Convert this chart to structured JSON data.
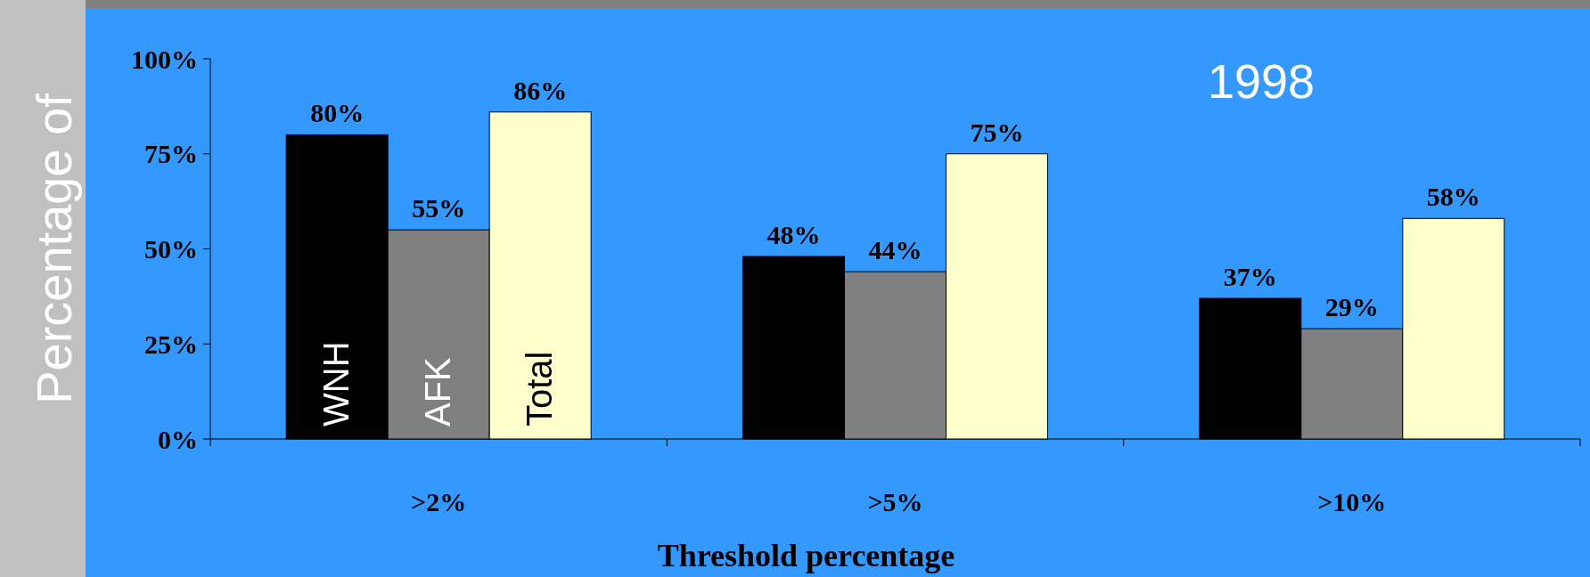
{
  "chart_data": {
    "type": "bar",
    "ylabel": "Percentage of",
    "xlabel": "Threshold percentage",
    "annotations": [
      "1998"
    ],
    "categories": [
      ">2%",
      ">5%",
      ">10%"
    ],
    "series": [
      {
        "name": "WNH",
        "color": "#000000",
        "values": [
          80,
          48,
          37
        ],
        "value_labels": [
          "80%",
          "48%",
          "37%"
        ]
      },
      {
        "name": "AFK",
        "color": "#808080",
        "values": [
          55,
          44,
          29
        ],
        "value_labels": [
          "55%",
          "44%",
          "29%"
        ]
      },
      {
        "name": "Total",
        "color": "#ffffcc",
        "values": [
          86,
          75,
          58
        ],
        "value_labels": [
          "86%",
          "75%",
          "58%"
        ]
      }
    ],
    "ylim": [
      0,
      100
    ],
    "yticks": [
      {
        "value": 0,
        "label": "0%"
      },
      {
        "value": 25,
        "label": "25%"
      },
      {
        "value": 50,
        "label": "50%"
      },
      {
        "value": 75,
        "label": "75%"
      },
      {
        "value": 100,
        "label": "100%"
      }
    ]
  }
}
